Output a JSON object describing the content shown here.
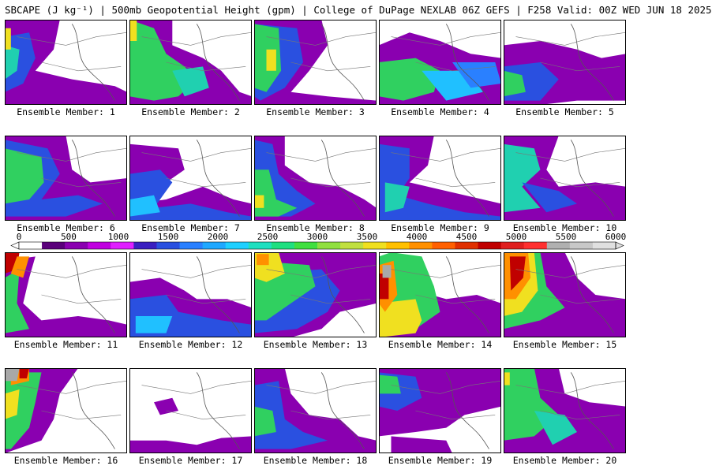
{
  "title": "SBCAPE (J kg⁻¹) | 500mb Geopotential Height (gpm) | College of DuPage NEXLAB 06Z GEFS | F258 Valid: 00Z WED JUN 18 2025",
  "colorbar": {
    "labels": [
      "0",
      "500",
      "1000",
      "1500",
      "2000",
      "2500",
      "3000",
      "3500",
      "4000",
      "4500",
      "5000",
      "5500",
      "6000"
    ],
    "min": 0,
    "max": 6000,
    "colors": [
      "#ffffff",
      "#5a007a",
      "#8a00b0",
      "#c000e0",
      "#e020ff",
      "#3a1fc0",
      "#2a50e0",
      "#2a80ff",
      "#20a8ff",
      "#20d0ff",
      "#20e0c0",
      "#20e080",
      "#40e040",
      "#90e040",
      "#c0e040",
      "#f0e020",
      "#ffc000",
      "#ff9000",
      "#ff6000",
      "#e03000",
      "#c00000",
      "#e02020",
      "#ff3030",
      "#b0b0b0",
      "#c8c8c8",
      "#e0e0e0"
    ]
  },
  "panels": [
    {
      "label": "Ensemble Member: 1"
    },
    {
      "label": "Ensemble Member: 2"
    },
    {
      "label": "Ensemble Member: 3"
    },
    {
      "label": "Ensemble Member: 4"
    },
    {
      "label": "Ensemble Member: 5"
    },
    {
      "label": "Ensemble Member: 6"
    },
    {
      "label": "Ensemble Member: 7"
    },
    {
      "label": "Ensemble Member: 8"
    },
    {
      "label": "Ensemble Member: 9"
    },
    {
      "label": "Ensemble Member: 10"
    },
    {
      "label": "Ensemble Member: 11"
    },
    {
      "label": "Ensemble Member: 12"
    },
    {
      "label": "Ensemble Member: 13"
    },
    {
      "label": "Ensemble Member: 14"
    },
    {
      "label": "Ensemble Member: 15"
    },
    {
      "label": "Ensemble Member: 16"
    },
    {
      "label": "Ensemble Member: 17"
    },
    {
      "label": "Ensemble Member: 18"
    },
    {
      "label": "Ensemble Member: 19"
    },
    {
      "label": "Ensemble Member: 20"
    }
  ]
}
